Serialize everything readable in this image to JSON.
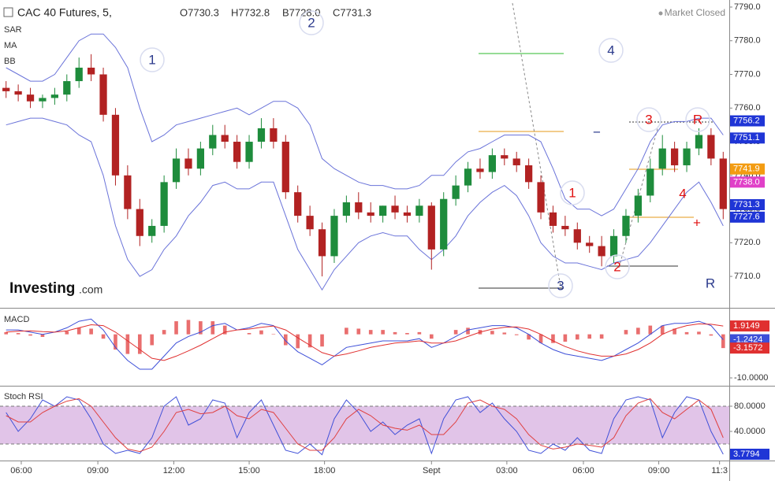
{
  "chart_data": [
    {
      "type": "candlestick",
      "title": "CAC 40 Futures, 5,",
      "ohlc_labels": [
        "O7730.3",
        "H7732.8",
        "B7728.0",
        "C7731.3"
      ],
      "status": "Market Closed",
      "indicators": [
        "SAR",
        "MA",
        "BB"
      ],
      "up_color": "#1e8c3c",
      "down_color": "#b22222",
      "open": [
        7766,
        7765,
        7764,
        7762,
        7763,
        7764,
        7768,
        7772,
        7770,
        7758,
        7740,
        7730,
        7722,
        7725,
        7738,
        7745,
        7742,
        7748,
        7752,
        7750,
        7744,
        7750,
        7754,
        7750,
        7735,
        7728,
        7724,
        7716,
        7728,
        7732,
        7729,
        7728,
        7731,
        7729,
        7728,
        7731,
        7718,
        7733,
        7737,
        7742,
        7741,
        7746,
        7745,
        7743,
        7738,
        7729,
        7725,
        7724,
        7720,
        7719,
        7716,
        7722,
        7728,
        7734,
        7742,
        7748,
        7743,
        7748,
        7752,
        7745
      ],
      "high": [
        7768,
        7767,
        7766,
        7764,
        7766,
        7770,
        7775,
        7776,
        7772,
        7760,
        7743,
        7733,
        7727,
        7740,
        7748,
        7748,
        7750,
        7755,
        7755,
        7752,
        7752,
        7757,
        7757,
        7752,
        7737,
        7731,
        7726,
        7730,
        7734,
        7735,
        7732,
        7731,
        7734,
        7731,
        7733,
        7732,
        7735,
        7740,
        7744,
        7745,
        7748,
        7748,
        7747,
        7745,
        7740,
        7731,
        7728,
        7726,
        7722,
        7722,
        7724,
        7730,
        7736,
        7745,
        7752,
        7750,
        7750,
        7754,
        7754,
        7747
      ],
      "low": [
        7763,
        7762,
        7760,
        7760,
        7761,
        7762,
        7766,
        7768,
        7756,
        7737,
        7727,
        7719,
        7720,
        7723,
        7736,
        7740,
        7740,
        7746,
        7748,
        7742,
        7742,
        7748,
        7748,
        7733,
        7726,
        7722,
        7710,
        7714,
        7726,
        7727,
        7726,
        7726,
        7727,
        7726,
        7726,
        7712,
        7716,
        7731,
        7735,
        7739,
        7739,
        7743,
        7741,
        7736,
        7727,
        7723,
        7722,
        7718,
        7717,
        7713,
        7714,
        7720,
        7726,
        7732,
        7740,
        7741,
        7741,
        7746,
        7743,
        7727
      ],
      "close": [
        7765,
        7764,
        7762,
        7763,
        7764,
        7768,
        7772,
        7770,
        7758,
        7740,
        7730,
        7722,
        7725,
        7738,
        7745,
        7742,
        7748,
        7752,
        7750,
        7744,
        7750,
        7754,
        7750,
        7735,
        7728,
        7724,
        7716,
        7728,
        7732,
        7729,
        7728,
        7731,
        7729,
        7728,
        7731,
        7718,
        7733,
        7737,
        7742,
        7741,
        7746,
        7745,
        7743,
        7738,
        7729,
        7725,
        7724,
        7720,
        7719,
        7716,
        7722,
        7728,
        7734,
        7742,
        7748,
        7743,
        7748,
        7752,
        7745,
        7730
      ],
      "bollinger": {
        "name": "BB",
        "color": "#6a73d9",
        "upper": [
          7772,
          7770,
          7768,
          7768,
          7770,
          7775,
          7780,
          7782,
          7782,
          7778,
          7772,
          7760,
          7750,
          7752,
          7755,
          7756,
          7757,
          7758,
          7759,
          7760,
          7758,
          7760,
          7762,
          7762,
          7760,
          7755,
          7745,
          7742,
          7740,
          7738,
          7737,
          7737,
          7736,
          7736,
          7737,
          7740,
          7740,
          7744,
          7747,
          7748,
          7750,
          7752,
          7752,
          7752,
          7750,
          7742,
          7733,
          7730,
          7730,
          7728,
          7730,
          7736,
          7742,
          7750,
          7755,
          7756,
          7756,
          7757,
          7757,
          7752
        ],
        "lower": [
          7755,
          7756,
          7757,
          7757,
          7756,
          7755,
          7752,
          7750,
          7740,
          7725,
          7715,
          7710,
          7712,
          7718,
          7722,
          7728,
          7732,
          7737,
          7738,
          7736,
          7736,
          7738,
          7738,
          7728,
          7718,
          7712,
          7706,
          7712,
          7716,
          7720,
          7722,
          7723,
          7722,
          7722,
          7718,
          7715,
          7718,
          7722,
          7728,
          7732,
          7735,
          7737,
          7734,
          7728,
          7720,
          7716,
          7714,
          7714,
          7713,
          7712,
          7714,
          7715,
          7716,
          7720,
          7725,
          7730,
          7735,
          7738,
          7732,
          7725
        ]
      },
      "price_tags": [
        {
          "value": 7756.2,
          "color": "#1f35d6"
        },
        {
          "value": 7751.1,
          "color": "#1f35d6"
        },
        {
          "value": 7741.9,
          "color": "#f39c12"
        },
        {
          "value": 7738,
          "label": "7738.0",
          "color": "#e040c8"
        },
        {
          "value": 7731.3,
          "color": "#1f35d6"
        },
        {
          "value": 7727.6,
          "color": "#1f35d6"
        }
      ],
      "annotations": [
        {
          "text": "1",
          "color": "#2b3a8c",
          "circle": true
        },
        {
          "text": "2",
          "color": "#2b3a8c",
          "circle": true
        },
        {
          "text": "4",
          "color": "#2b3a8c",
          "circle": true
        },
        {
          "text": "3",
          "color": "#2b3a8c",
          "circle": true
        },
        {
          "text": "1",
          "color": "#e01010",
          "circle": true
        },
        {
          "text": "2",
          "color": "#e01010",
          "circle": true
        },
        {
          "text": "3",
          "color": "#e01010",
          "circle": true
        },
        {
          "text": "R",
          "color": "#e01010",
          "circle": true
        },
        {
          "text": "4",
          "color": "#e01010",
          "circle": false
        },
        {
          "text": "+",
          "color": "#e01010",
          "circle": false
        },
        {
          "text": "−",
          "color": "#2b3a8c",
          "circle": false
        },
        {
          "text": "R",
          "color": "#2b3a8c",
          "circle": false
        }
      ],
      "ylim": [
        7700.9,
        7792.1
      ],
      "yticks": [
        {
          "value": 7710,
          "label": "7710.0"
        },
        {
          "value": 7720,
          "label": "7720.0"
        },
        {
          "value": 7730,
          "label": "7730.0"
        },
        {
          "value": 7740,
          "label": "7740.0"
        },
        {
          "value": 7750,
          "label": "7750.0"
        },
        {
          "value": 7760,
          "label": "7760.0"
        },
        {
          "value": 7770,
          "label": "7770.0"
        },
        {
          "value": 7780,
          "label": "7780.0"
        },
        {
          "value": 7790,
          "label": "7790.0"
        }
      ],
      "xlim": [
        -0.5,
        59.5
      ],
      "xticks": [
        {
          "value": 1.25,
          "label": "06:00"
        },
        {
          "value": 7.55,
          "label": "09:00"
        },
        {
          "value": 13.8,
          "label": "12:00"
        },
        {
          "value": 20,
          "label": "15:00"
        },
        {
          "value": 26.2,
          "label": "18:00"
        },
        {
          "value": 35,
          "label": "Sept"
        },
        {
          "value": 41.2,
          "label": "03:00"
        },
        {
          "value": 47.5,
          "label": "06:00"
        },
        {
          "value": 53.7,
          "label": "09:00"
        },
        {
          "value": 58.7,
          "label": "11:3"
        }
      ]
    },
    {
      "type": "macd",
      "title": "MACD",
      "macd": {
        "color": "#3d4fd8",
        "values": [
          1,
          1,
          0.5,
          0,
          0.5,
          1.5,
          3,
          3.5,
          1,
          -3,
          -6,
          -8,
          -8,
          -5,
          -2,
          -0.5,
          0.5,
          2,
          2.5,
          1,
          1.5,
          2.5,
          2,
          -1.5,
          -4,
          -5.5,
          -7,
          -5,
          -3,
          -2.5,
          -2,
          -1.5,
          -1.5,
          -1.5,
          -1,
          -3,
          -2,
          -0.5,
          1,
          1.5,
          2,
          2,
          1.5,
          0,
          -2,
          -3.5,
          -4.5,
          -5,
          -5.5,
          -6,
          -5,
          -3.5,
          -2,
          0,
          2,
          2.5,
          2.5,
          3,
          2,
          -1.2424
        ]
      },
      "signal": {
        "color": "#e03030",
        "values": [
          0.5,
          0.7,
          0.8,
          0.6,
          0.5,
          0.8,
          1.5,
          2.2,
          2,
          0.5,
          -1.5,
          -3.5,
          -5.5,
          -6,
          -5,
          -3.8,
          -2.5,
          -1,
          0.5,
          1,
          1.2,
          1.6,
          1.9,
          1,
          -0.8,
          -2.5,
          -4.2,
          -5,
          -4.5,
          -3.8,
          -3,
          -2.5,
          -2,
          -1.8,
          -1.5,
          -2,
          -2,
          -1.5,
          -0.5,
          0.5,
          1.2,
          1.6,
          1.7,
          1.2,
          0,
          -1.5,
          -2.8,
          -3.8,
          -4.5,
          -5,
          -5,
          -4.5,
          -3.5,
          -2,
          0,
          1.2,
          2,
          2.4,
          2.3,
          1.9149
        ]
      },
      "histogram": {
        "color": "#e03030",
        "values": [
          0.5,
          0.3,
          -0.3,
          -0.6,
          0,
          0.7,
          1.5,
          1.3,
          -1,
          -3.5,
          -4.5,
          -4.5,
          -2.5,
          1,
          3,
          3.3,
          3,
          3,
          2,
          0,
          0.3,
          0.9,
          0.1,
          -2.5,
          -3.2,
          -3,
          -2.8,
          0,
          1.5,
          1.3,
          1,
          1,
          0.5,
          0.3,
          0.5,
          -1,
          0,
          1,
          1.5,
          1,
          0.8,
          0.4,
          -0.2,
          -1.2,
          -2,
          -2,
          -1.7,
          -1.2,
          -1,
          -1,
          0,
          1,
          1.5,
          2,
          2,
          1.3,
          0.5,
          0.6,
          -0.3,
          -3.1572
        ]
      },
      "ylim": [
        -11.8,
        5.9
      ],
      "yticks": [
        {
          "value": -10,
          "label": "-10.0000"
        }
      ]
    },
    {
      "type": "line",
      "title": "Stoch RSI",
      "series": [
        {
          "color": "#4050d8",
          "values": [
            70,
            40,
            60,
            90,
            80,
            95,
            90,
            60,
            20,
            5,
            10,
            5,
            30,
            80,
            95,
            50,
            60,
            90,
            85,
            30,
            70,
            90,
            50,
            10,
            5,
            20,
            3,
            60,
            90,
            70,
            40,
            55,
            35,
            50,
            60,
            5,
            60,
            90,
            95,
            70,
            85,
            60,
            40,
            10,
            5,
            20,
            10,
            30,
            10,
            5,
            60,
            90,
            95,
            90,
            30,
            70,
            95,
            90,
            40,
            3.7794
          ]
        },
        {
          "color": "#e04040",
          "values": [
            65,
            55,
            55,
            70,
            80,
            88,
            92,
            80,
            55,
            30,
            12,
            8,
            15,
            40,
            70,
            75,
            68,
            70,
            80,
            65,
            60,
            75,
            70,
            45,
            20,
            10,
            10,
            30,
            60,
            75,
            65,
            50,
            45,
            42,
            50,
            35,
            35,
            55,
            85,
            90,
            80,
            75,
            60,
            35,
            18,
            12,
            15,
            20,
            18,
            15,
            30,
            65,
            85,
            92,
            70,
            60,
            75,
            90,
            75,
            30
          ]
        }
      ],
      "band": [
        20,
        80
      ],
      "band_color": "#e1c4e8",
      "ylim": [
        -6.25,
        110
      ],
      "yticks": [
        {
          "value": 40,
          "label": "40.0000"
        },
        {
          "value": 80,
          "label": "80.0000"
        }
      ]
    }
  ],
  "branding": {
    "name": "Investing",
    "suffix": ".com"
  }
}
